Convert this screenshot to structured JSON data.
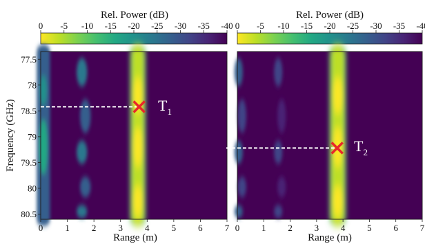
{
  "chart_data": [
    {
      "type": "heatmap",
      "title": "",
      "xlabel": "Range (m)",
      "ylabel": "Frequency (GHz)",
      "xlim": [
        0,
        7
      ],
      "ylim": [
        77.35,
        80.6
      ],
      "x_ticks": [
        "0",
        "1",
        "2",
        "3",
        "4",
        "5",
        "6",
        "7"
      ],
      "y_ticks": [
        "77.5",
        "78",
        "78.5",
        "79",
        "79.5",
        "80",
        "80.5"
      ],
      "y_inverted": true,
      "colorbar": {
        "label": "Rel. Power (dB)",
        "ticks": [
          "0",
          "-5",
          "-10",
          "-15",
          "-20",
          "-25",
          "-30",
          "-35",
          "-40"
        ],
        "range": [
          0,
          -40
        ],
        "colormap": "viridis"
      },
      "bands": [
        {
          "range_m": 0.1,
          "width_m": 0.25,
          "peak_db": -18,
          "intermittent": false
        },
        {
          "range_m": 1.6,
          "width_m": 0.25,
          "peak_db": -25,
          "intermittent": true
        },
        {
          "range_m": 3.65,
          "width_m": 0.3,
          "peak_db": 0,
          "intermittent": false
        }
      ],
      "annotation": {
        "label": "T",
        "subscript": "1",
        "range_m": 3.7,
        "frequency_ghz": 78.42,
        "marker": "x",
        "marker_color": "#e8282a",
        "guide_line": "dashed",
        "guide_color": "#ffffff"
      }
    },
    {
      "type": "heatmap",
      "title": "",
      "xlabel": "Range (m)",
      "ylabel": "",
      "xlim": [
        0,
        7
      ],
      "ylim": [
        77.35,
        80.6
      ],
      "x_ticks": [
        "0",
        "1",
        "2",
        "3",
        "4",
        "5",
        "6",
        "7"
      ],
      "y_ticks": [],
      "y_inverted": true,
      "colorbar": {
        "label": "Rel. Power (dB)",
        "ticks": [
          "0",
          "-5",
          "-10",
          "-15",
          "-20",
          "-25",
          "-30",
          "-35",
          "-40"
        ],
        "range": [
          0,
          -40
        ],
        "colormap": "viridis"
      },
      "bands": [
        {
          "range_m": 0.1,
          "width_m": 0.2,
          "peak_db": -28,
          "intermittent": true
        },
        {
          "range_m": 1.6,
          "width_m": 0.2,
          "peak_db": -32,
          "intermittent": true
        },
        {
          "range_m": 3.8,
          "width_m": 0.32,
          "peak_db": 0,
          "intermittent": false
        }
      ],
      "annotation": {
        "label": "T",
        "subscript": "2",
        "range_m": 3.78,
        "frequency_ghz": 79.22,
        "marker": "x",
        "marker_color": "#e8282a",
        "guide_line": "dashed",
        "guide_color": "#ffffff"
      }
    }
  ],
  "colors": {
    "background": "#440154",
    "viridis": [
      "#440154",
      "#482475",
      "#414487",
      "#355f8d",
      "#2a788e",
      "#21918c",
      "#22a884",
      "#44bf70",
      "#7ad151",
      "#bddf26",
      "#fde725"
    ]
  }
}
